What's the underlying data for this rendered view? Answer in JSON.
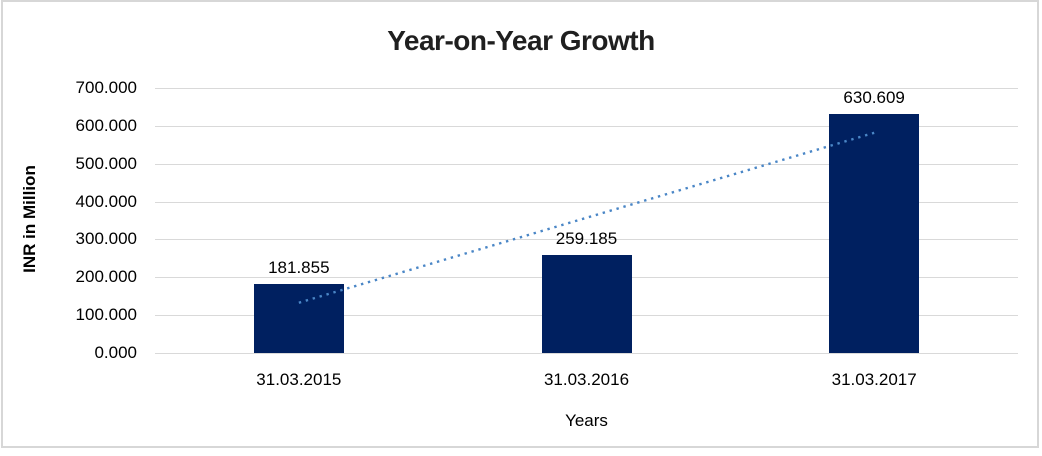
{
  "window": {
    "background": "#FFFFFF",
    "border_color": "#D7D7D7"
  },
  "chart_data": {
    "type": "bar",
    "title": "Year-on-Year Growth",
    "xlabel": "Years",
    "ylabel": "INR in Million",
    "categories": [
      "31.03.2015",
      "31.03.2016",
      "31.03.2017"
    ],
    "values": [
      181.855,
      259.185,
      630.609
    ],
    "value_labels": [
      "181.855",
      "259.185",
      "630.609"
    ],
    "ylim": [
      0,
      700
    ],
    "yticks": [
      {
        "value": 700,
        "label": "700.000"
      },
      {
        "value": 600,
        "label": "600.000"
      },
      {
        "value": 500,
        "label": "500.000"
      },
      {
        "value": 400,
        "label": "400.000"
      },
      {
        "value": 300,
        "label": "300.000"
      },
      {
        "value": 200,
        "label": "200.000"
      },
      {
        "value": 100,
        "label": "100.000"
      },
      {
        "value": 0,
        "label": "0.000"
      }
    ],
    "grid": "horizontal",
    "legend": "none",
    "bar_color": "#002060",
    "gridline_color": "#D9D9D9",
    "trendline": {
      "type": "linear",
      "style": "dotted",
      "color": "#4A86C6",
      "start": {
        "category_index": 0,
        "value": 132.8
      },
      "end": {
        "category_index": 2,
        "value": 581.6
      }
    }
  }
}
